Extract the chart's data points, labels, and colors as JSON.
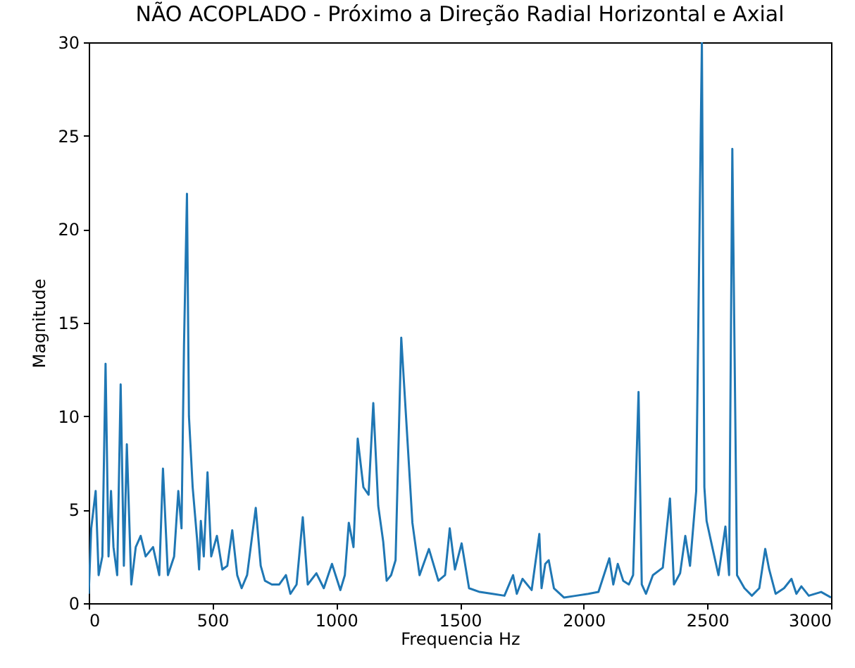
{
  "chart_data": {
    "type": "line",
    "title": "NÃO ACOPLADO - Próximo a Direção Radial Horizontal e Axial",
    "xlabel": "Frequencia Hz",
    "ylabel": "Magnitude",
    "xlim": [
      0,
      3000
    ],
    "ylim": [
      0,
      30
    ],
    "xticks": [
      0,
      500,
      1000,
      1500,
      2000,
      2500,
      3000
    ],
    "yticks": [
      0,
      5,
      10,
      15,
      20,
      25,
      30
    ],
    "grid": false,
    "marker": "none",
    "line_style": "solid",
    "series": [
      {
        "color": "#1f77b4",
        "x": [
          0,
          10,
          28,
          40,
          55,
          68,
          80,
          90,
          100,
          115,
          129,
          142,
          154,
          172,
          190,
          210,
          230,
          260,
          285,
          300,
          320,
          345,
          362,
          375,
          385,
          397,
          405,
          420,
          438,
          446,
          453,
          465,
          480,
          495,
          518,
          540,
          560,
          580,
          600,
          618,
          640,
          675,
          695,
          712,
          740,
          770,
          797,
          815,
          840,
          865,
          885,
          920,
          950,
          983,
          1017,
          1035,
          1051,
          1070,
          1087,
          1110,
          1131,
          1150,
          1170,
          1190,
          1204,
          1222,
          1240,
          1263,
          1285,
          1308,
          1337,
          1375,
          1413,
          1440,
          1459,
          1480,
          1507,
          1537,
          1580,
          1632,
          1680,
          1715,
          1730,
          1753,
          1790,
          1821,
          1830,
          1845,
          1859,
          1880,
          1921,
          1970,
          2019,
          2060,
          2104,
          2120,
          2138,
          2160,
          2183,
          2200,
          2222,
          2235,
          2252,
          2280,
          2320,
          2349,
          2365,
          2390,
          2411,
          2430,
          2455,
          2478,
          2488,
          2497,
          2520,
          2545,
          2573,
          2588,
          2601,
          2620,
          2650,
          2680,
          2710,
          2734,
          2750,
          2776,
          2810,
          2840,
          2860,
          2880,
          2910,
          2960,
          3000
        ],
        "values": [
          0.5,
          4.0,
          6.0,
          1.5,
          2.5,
          12.8,
          2.5,
          6.0,
          3.0,
          1.5,
          11.7,
          2.0,
          8.5,
          1.0,
          3.0,
          3.6,
          2.5,
          3.0,
          1.5,
          7.2,
          1.5,
          2.5,
          6.0,
          4.0,
          13.8,
          21.9,
          10.0,
          6.2,
          3.4,
          1.8,
          4.4,
          2.5,
          7.0,
          2.5,
          3.6,
          1.8,
          2.0,
          3.9,
          1.5,
          0.8,
          1.5,
          5.1,
          2.0,
          1.2,
          1.0,
          1.0,
          1.5,
          0.5,
          1.0,
          4.6,
          1.0,
          1.6,
          0.8,
          2.1,
          0.7,
          1.5,
          4.3,
          3.0,
          8.8,
          6.2,
          5.8,
          10.7,
          5.2,
          3.3,
          1.2,
          1.5,
          2.3,
          14.2,
          9.4,
          4.3,
          1.5,
          2.9,
          1.2,
          1.5,
          4.0,
          1.8,
          3.2,
          0.8,
          0.6,
          0.5,
          0.4,
          1.5,
          0.5,
          1.3,
          0.7,
          3.7,
          0.8,
          2.1,
          2.3,
          0.8,
          0.3,
          0.4,
          0.5,
          0.6,
          2.4,
          1.0,
          2.1,
          1.2,
          1.0,
          1.5,
          11.3,
          1.0,
          0.5,
          1.5,
          1.9,
          5.6,
          1.0,
          1.6,
          3.6,
          2.0,
          6.0,
          30,
          6.2,
          4.4,
          3.0,
          1.5,
          4.1,
          1.5,
          24.3,
          1.5,
          0.8,
          0.4,
          0.8,
          2.9,
          1.8,
          0.5,
          0.8,
          1.3,
          0.5,
          0.9,
          0.4,
          0.6,
          0.3
        ]
      }
    ]
  }
}
